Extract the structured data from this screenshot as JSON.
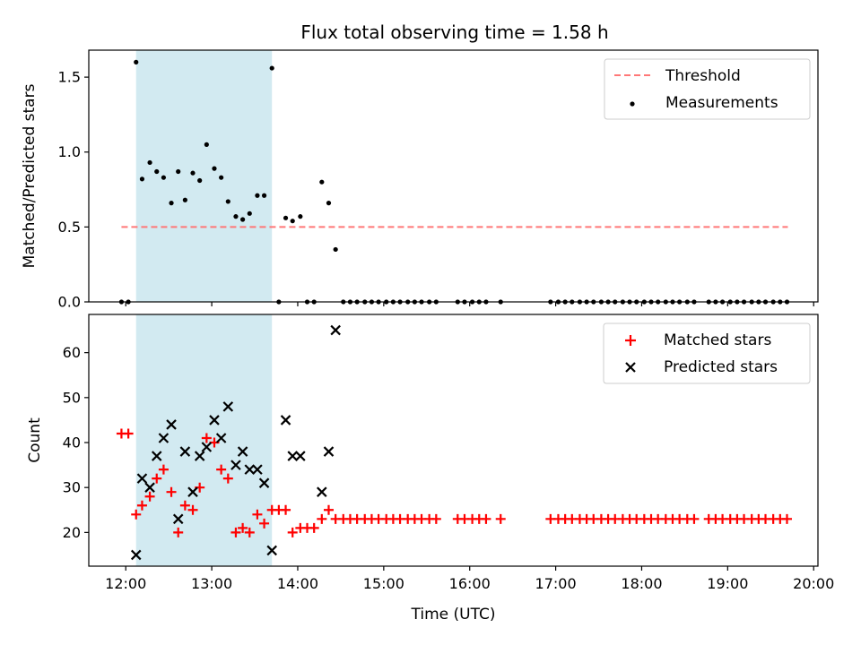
{
  "title": "Flux total observing time = 1.58 h",
  "x_axis": {
    "label": "Time (UTC)",
    "range_hours": [
      11.57,
      20.05
    ],
    "ticks": [
      "12:00",
      "13:00",
      "14:00",
      "15:00",
      "16:00",
      "17:00",
      "18:00",
      "19:00",
      "20:00"
    ],
    "tick_hours": [
      12,
      13,
      14,
      15,
      16,
      17,
      18,
      19,
      20
    ]
  },
  "shaded_interval_hours": [
    12.12,
    13.7
  ],
  "colors": {
    "shade": "#add8e6",
    "threshold": "#ff7777",
    "measurements": "#000000",
    "matched": "#ff0000",
    "predicted": "#000000"
  },
  "chart_data": [
    {
      "type": "scatter",
      "panel": "top",
      "ylabel": "Matched/Predicted stars",
      "ylim": [
        0,
        1.68
      ],
      "yticks": [
        0.0,
        0.5,
        1.0,
        1.5
      ],
      "ytick_labels": [
        "0.0",
        "0.5",
        "1.0",
        "1.5"
      ],
      "legend": {
        "position": "top-right",
        "threshold_label": "Threshold",
        "measurements_label": "Measurements"
      },
      "threshold": {
        "name": "Threshold",
        "y": 0.5,
        "x_range": [
          11.95,
          19.7
        ]
      },
      "measurements": {
        "name": "Measurements",
        "x": [
          11.95,
          12.03,
          12.12,
          12.19,
          12.28,
          12.36,
          12.44,
          12.53,
          12.61,
          12.69,
          12.78,
          12.86,
          12.94,
          13.03,
          13.11,
          13.19,
          13.28,
          13.36,
          13.44,
          13.53,
          13.61,
          13.7,
          13.78,
          13.86,
          13.94,
          14.03,
          14.11,
          14.19,
          14.28,
          14.36,
          14.44,
          14.53,
          14.61,
          14.69,
          14.78,
          14.86,
          14.94,
          15.03,
          15.11,
          15.19,
          15.28,
          15.36,
          15.44,
          15.53,
          15.61,
          15.86,
          15.94,
          16.03,
          16.11,
          16.19,
          16.36,
          16.94,
          17.03,
          17.11,
          17.19,
          17.28,
          17.36,
          17.44,
          17.53,
          17.61,
          17.69,
          17.78,
          17.86,
          17.94,
          18.03,
          18.11,
          18.19,
          18.28,
          18.36,
          18.44,
          18.53,
          18.61,
          18.78,
          18.86,
          18.94,
          19.03,
          19.11,
          19.19,
          19.28,
          19.36,
          19.44,
          19.53,
          19.61,
          19.69
        ],
        "y": [
          0.0,
          0.0,
          1.6,
          0.82,
          0.93,
          0.87,
          0.83,
          0.66,
          0.87,
          0.68,
          0.86,
          0.81,
          1.05,
          0.89,
          0.83,
          0.67,
          0.57,
          0.55,
          0.59,
          0.71,
          0.71,
          1.56,
          0.0,
          0.56,
          0.54,
          0.57,
          0.0,
          0.0,
          0.8,
          0.66,
          0.35,
          0.0,
          0.0,
          0.0,
          0.0,
          0.0,
          0.0,
          0.0,
          0.0,
          0.0,
          0.0,
          0.0,
          0.0,
          0.0,
          0.0,
          0.0,
          0.0,
          0.0,
          0.0,
          0.0,
          0.0,
          0.0,
          0.0,
          0.0,
          0.0,
          0.0,
          0.0,
          0.0,
          0.0,
          0.0,
          0.0,
          0.0,
          0.0,
          0.0,
          0.0,
          0.0,
          0.0,
          0.0,
          0.0,
          0.0,
          0.0,
          0.0,
          0.0,
          0.0,
          0.0,
          0.0,
          0.0,
          0.0,
          0.0,
          0.0,
          0.0,
          0.0,
          0.0,
          0.0
        ]
      }
    },
    {
      "type": "scatter",
      "panel": "bottom",
      "ylabel": "Count",
      "ylim": [
        12.5,
        68.5
      ],
      "yticks": [
        20,
        30,
        40,
        50,
        60
      ],
      "ytick_labels": [
        "20",
        "30",
        "40",
        "50",
        "60"
      ],
      "legend": {
        "position": "top-right"
      },
      "series": [
        {
          "name": "Matched stars",
          "marker": "plus",
          "x": [
            11.95,
            12.03,
            12.12,
            12.19,
            12.28,
            12.36,
            12.44,
            12.53,
            12.61,
            12.69,
            12.78,
            12.86,
            12.94,
            13.03,
            13.11,
            13.19,
            13.28,
            13.36,
            13.44,
            13.53,
            13.61,
            13.7,
            13.78,
            13.86,
            13.94,
            14.03,
            14.11,
            14.19,
            14.28,
            14.36,
            14.44,
            14.53,
            14.61,
            14.69,
            14.78,
            14.86,
            14.94,
            15.03,
            15.11,
            15.19,
            15.28,
            15.36,
            15.44,
            15.53,
            15.61,
            15.86,
            15.94,
            16.03,
            16.11,
            16.19,
            16.36,
            16.94,
            17.03,
            17.11,
            17.19,
            17.28,
            17.36,
            17.44,
            17.53,
            17.61,
            17.69,
            17.78,
            17.86,
            17.94,
            18.03,
            18.11,
            18.19,
            18.28,
            18.36,
            18.44,
            18.53,
            18.61,
            18.78,
            18.86,
            18.94,
            19.03,
            19.11,
            19.19,
            19.28,
            19.36,
            19.44,
            19.53,
            19.61,
            19.69
          ],
          "y": [
            42,
            42,
            24,
            26,
            28,
            32,
            34,
            29,
            20,
            26,
            25,
            30,
            41,
            40,
            34,
            32,
            20,
            21,
            20,
            24,
            22,
            25,
            25,
            25,
            20,
            21,
            21,
            21,
            23,
            25,
            23,
            23,
            23,
            23,
            23,
            23,
            23,
            23,
            23,
            23,
            23,
            23,
            23,
            23,
            23,
            23,
            23,
            23,
            23,
            23,
            23,
            23,
            23,
            23,
            23,
            23,
            23,
            23,
            23,
            23,
            23,
            23,
            23,
            23,
            23,
            23,
            23,
            23,
            23,
            23,
            23,
            23,
            23,
            23,
            23,
            23,
            23,
            23,
            23,
            23,
            23,
            23,
            23,
            23
          ]
        },
        {
          "name": "Predicted stars",
          "marker": "x",
          "x": [
            12.12,
            12.19,
            12.28,
            12.36,
            12.44,
            12.53,
            12.61,
            12.69,
            12.78,
            12.86,
            12.94,
            13.03,
            13.11,
            13.19,
            13.28,
            13.36,
            13.44,
            13.53,
            13.61,
            13.7,
            13.86,
            13.94,
            14.03,
            14.28,
            14.36,
            14.44
          ],
          "y": [
            15,
            32,
            30,
            37,
            41,
            44,
            23,
            38,
            29,
            37,
            39,
            45,
            41,
            48,
            35,
            38,
            34,
            34,
            31,
            16,
            45,
            37,
            37,
            29,
            38,
            65
          ]
        }
      ]
    }
  ]
}
